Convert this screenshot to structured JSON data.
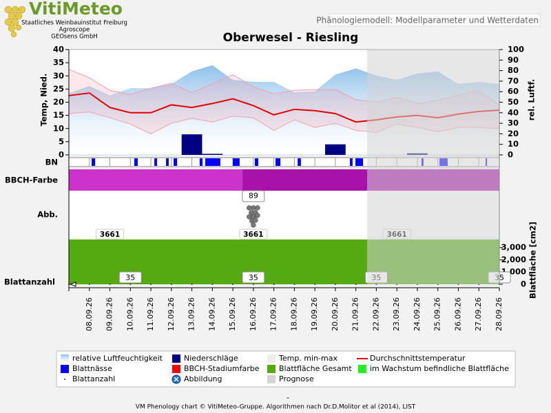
{
  "header": {
    "logo": "VitiMeteo",
    "org_lines": [
      "Staatliches Weinbauinstitut Freiburg",
      "Agroscope",
      "GEOsens GmbH"
    ],
    "subtitle": "Phänologiemodell: Modellparameter und Wetterdaten"
  },
  "chart_data": {
    "type": "phenology",
    "title": "Oberwesel - Riesling",
    "categories": [
      null,
      "08.09.26",
      "09.09.26",
      "10.09.26",
      "11.09.26",
      "12.09.26",
      "13.09.26",
      "14.09.26",
      "15.09.26",
      "16.09.26",
      "17.09.26",
      "18.09.26",
      "19.09.26",
      "20.09.26",
      "21.09.26",
      "22.09.26",
      "23.09.26",
      "24.09.26",
      "25.09.26",
      "26.09.26",
      "27.09.26",
      "28.09.26"
    ],
    "y_label": "Temp, Nied.",
    "y2_label": "rel. Luftf.",
    "ylim": [
      0,
      40
    ],
    "yticks": [
      0,
      5,
      10,
      15,
      20,
      25,
      30,
      35,
      40
    ],
    "y2lim": [
      0,
      100
    ],
    "y2ticks": [
      0,
      10,
      20,
      30,
      40,
      50,
      60,
      70,
      80,
      90,
      100
    ],
    "series": [
      {
        "name": "relative Luftfeuchtigkeit",
        "color": "#8ec0ea",
        "axis": "y2",
        "values": [
          58,
          65,
          56,
          63,
          63,
          67,
          79,
          85,
          71,
          69,
          69,
          59,
          60,
          76,
          82,
          75,
          71,
          77,
          79,
          67,
          69,
          67
        ]
      },
      {
        "name": "Niederschläge",
        "color": "#000080",
        "values": [
          0,
          0,
          0,
          0,
          0,
          0,
          7.8,
          0.4,
          0,
          0,
          0,
          0,
          0,
          4,
          0,
          0,
          0,
          0.6,
          0,
          0,
          0,
          0
        ]
      },
      {
        "name": "Temp. min-max",
        "color": "#f2a0aa",
        "values": [
          32.5,
          29.3,
          24.5,
          23,
          25.3,
          27.2,
          23.7,
          27,
          30.4,
          25.9,
          23.2,
          24.5,
          24.8,
          24.8,
          21,
          20,
          21.9,
          19.5,
          20.8,
          22.7,
          24.5,
          19
        ],
        "low": [
          15.7,
          16.3,
          14.1,
          11.7,
          8,
          12,
          13.9,
          12.5,
          14.7,
          14.1,
          9.3,
          13.3,
          10.4,
          12,
          9.3,
          8.5,
          11.7,
          10.4,
          8.8,
          10.4,
          10.4,
          9.9
        ]
      },
      {
        "name": "Durchschnittstemperatur",
        "color": "#e00000",
        "values": [
          22.5,
          23.5,
          18,
          16,
          16,
          19,
          18,
          19.5,
          21.3,
          18.7,
          15.2,
          17.3,
          16.8,
          15.7,
          12.5,
          13.3,
          14.4,
          15,
          14.1,
          15.5,
          16.5,
          17
        ]
      }
    ],
    "bn": {
      "label": "BN",
      "name": "Blattnässe",
      "color": "#0000ff",
      "intervals": [
        [
          1.11,
          1.28
        ],
        [
          3.19,
          3.36
        ],
        [
          4.17,
          4.3
        ],
        [
          4.74,
          4.87
        ],
        [
          5.11,
          5.28
        ],
        [
          6.38,
          6.52
        ],
        [
          6.65,
          7.39
        ],
        [
          8,
          8.33
        ],
        [
          9.07,
          9.24
        ],
        [
          10.08,
          10.32
        ],
        [
          11.16,
          11.32
        ],
        [
          13.71,
          13.84
        ],
        [
          13.98,
          14.35
        ],
        [
          17.2,
          17.3
        ],
        [
          18.08,
          18.48
        ],
        [
          20.33,
          20.4
        ]
      ]
    },
    "bbch": {
      "label": "BBCH-Farbe",
      "name": "BBCH-Stadiumfarbe",
      "color": "#ff0000",
      "segments": [
        {
          "from": 0,
          "to": 8.47,
          "color": "#cc33cc"
        },
        {
          "from": 8.47,
          "to": 21,
          "color": "#a812aa"
        }
      ]
    },
    "abb": {
      "label": "Abb.",
      "name": "Abbildung",
      "x": 9,
      "value": 89
    },
    "leaf_area": {
      "name": "Blattfläche Gesamt",
      "color": "#55aa11",
      "growing_name": "im Wachstum befindliche Blattfläche",
      "growing_color": "#22ee22",
      "axis_label": "Blattfläche [cm2]",
      "lim": [
        0,
        3661
      ],
      "ticks": [
        0,
        {
          "value": 1000,
          "label": "1,000"
        },
        {
          "value": 2000,
          "label": "2,000"
        },
        {
          "value": 3000,
          "label": "3,000"
        }
      ],
      "values": [
        3661,
        3661,
        3661,
        3661,
        3661,
        3661,
        3661,
        3661,
        3661,
        3661,
        3661,
        3661,
        3661,
        3661,
        3661,
        3661,
        3661,
        3661,
        3661,
        3661,
        3661,
        3661
      ],
      "labeled": [
        2,
        9,
        16
      ]
    },
    "leaf_count": {
      "label": "Blattanzahl",
      "name": "Blattanzahl",
      "values": [
        35,
        35,
        35,
        35,
        35,
        35,
        35,
        35,
        35,
        35,
        35,
        35,
        35,
        35,
        35,
        35,
        35,
        35,
        35,
        35,
        35,
        35
      ],
      "labeled": [
        3,
        9,
        15,
        21
      ]
    },
    "prognose": {
      "name": "Prognose",
      "from": 14.55,
      "color": "#d4d4d4"
    }
  },
  "footer": {
    "text": "VM Phenology chart © VitiMeteo-Gruppe. Algorithmen nach Dr.D.Molitor et al (2014), LIST",
    "mark": "-"
  }
}
